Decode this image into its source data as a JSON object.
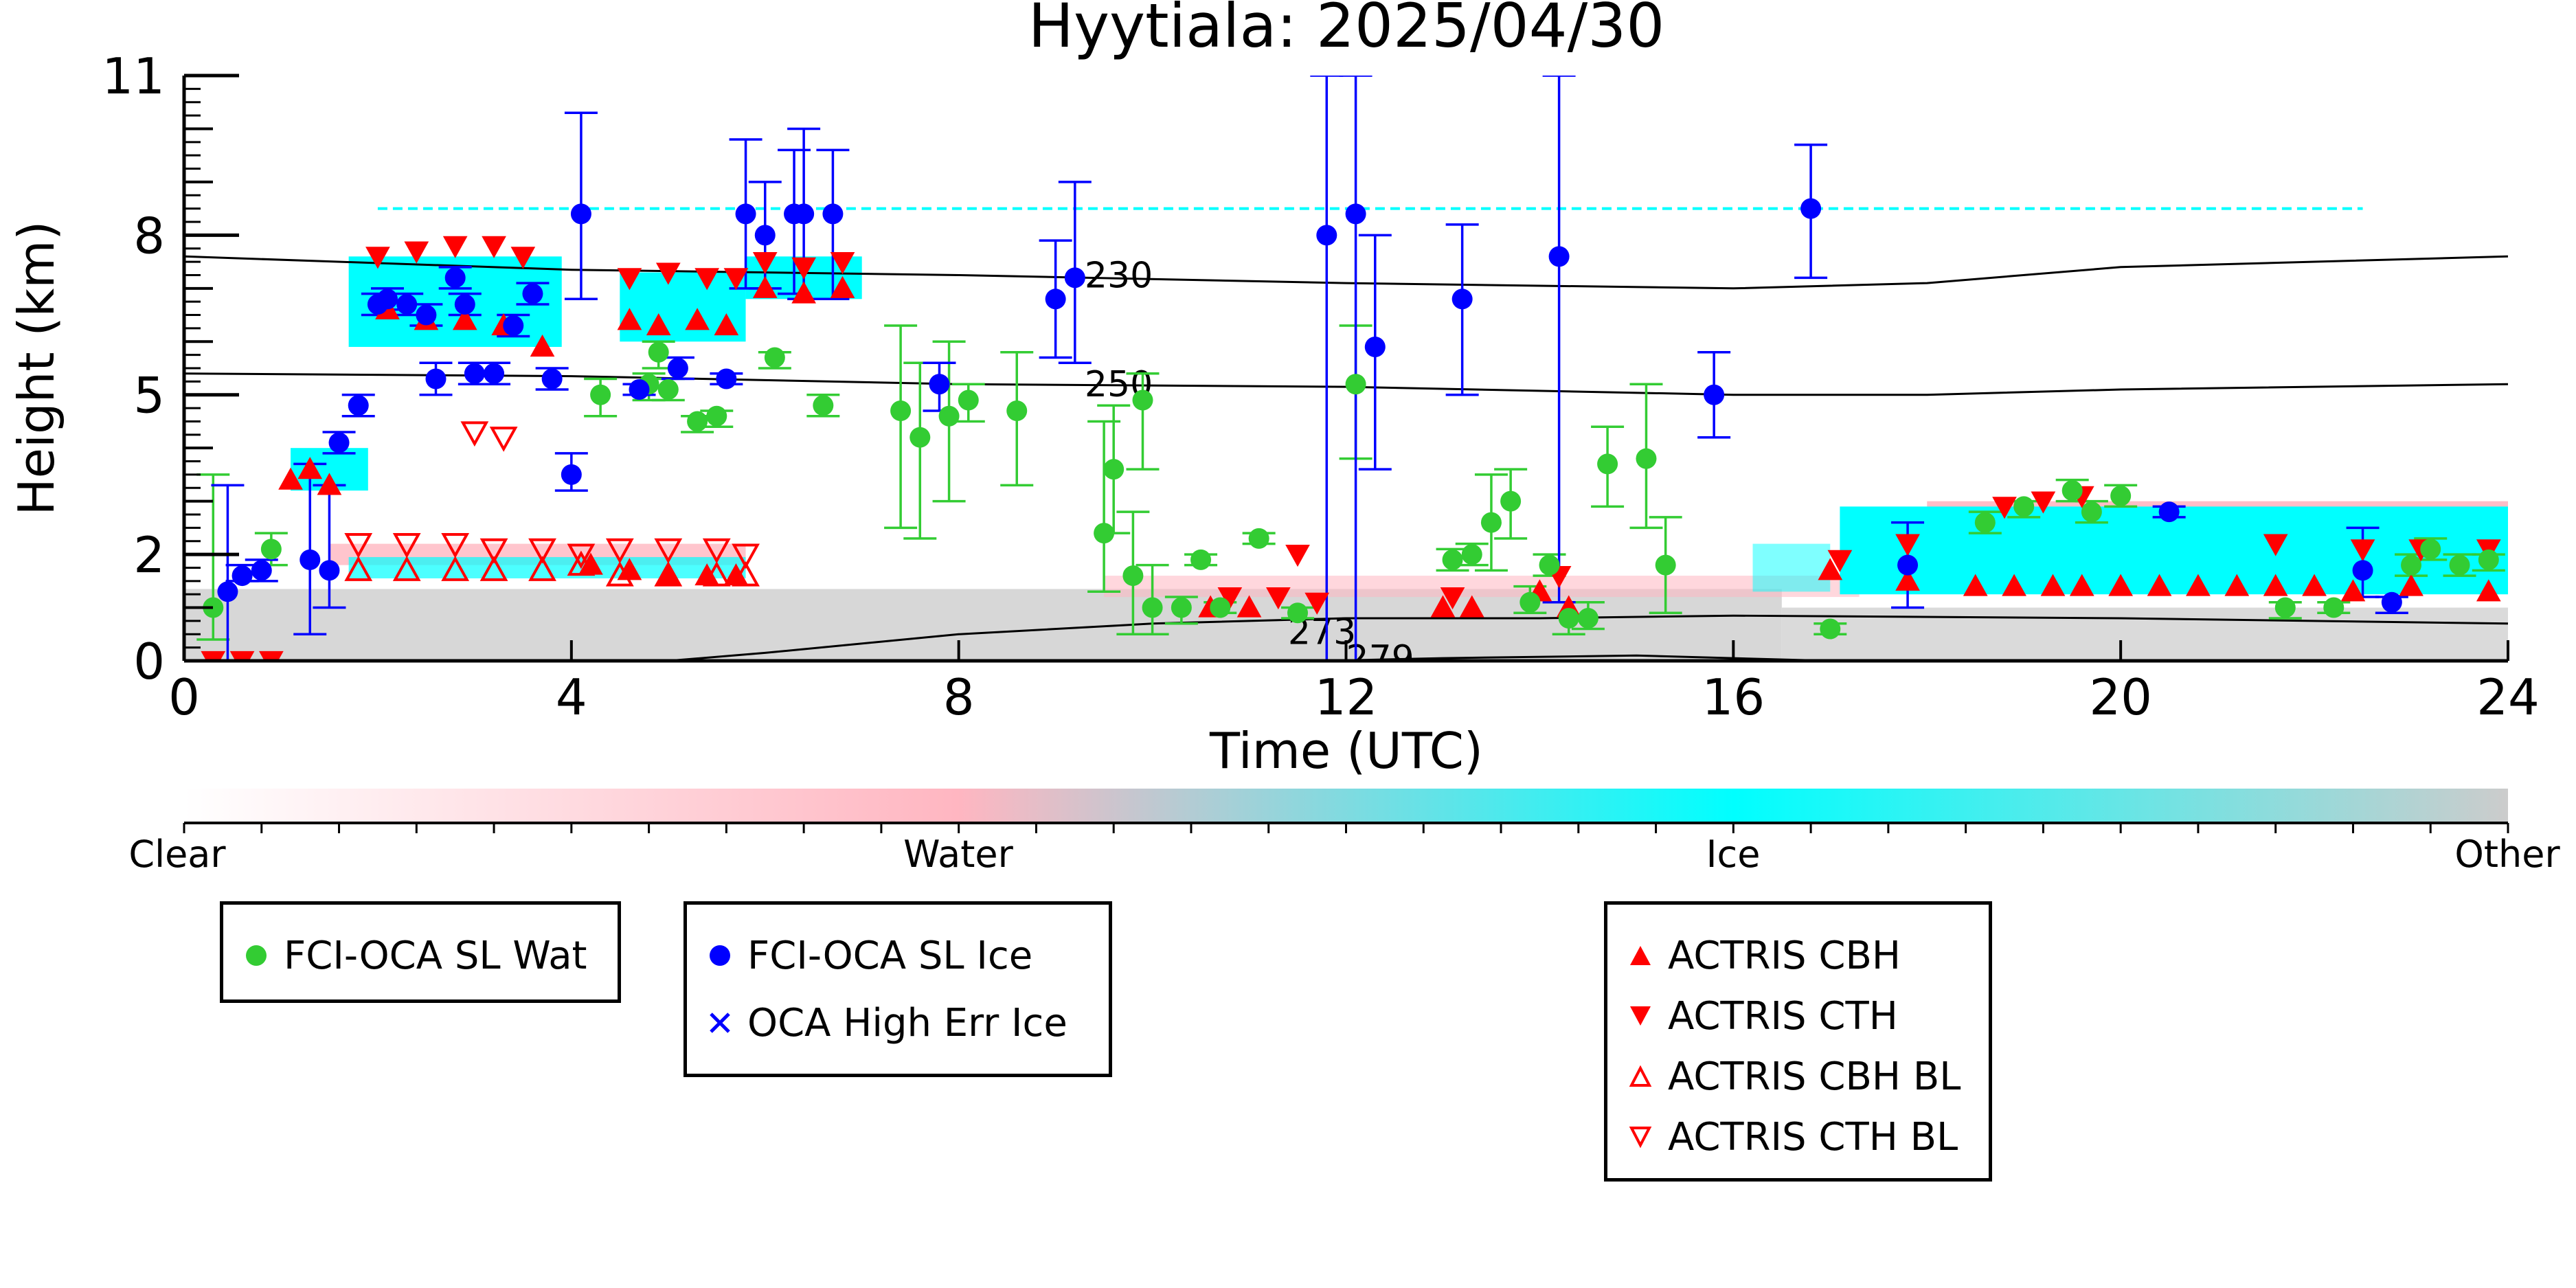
{
  "chart_data": {
    "type": "scatter",
    "title": "Hyytiala: 2025/04/30",
    "xlabel": "Time (UTC)",
    "ylabel": "Height (km)",
    "xlim": [
      0,
      24
    ],
    "ylim": [
      0,
      11
    ],
    "xticks": [
      0,
      4,
      8,
      12,
      16,
      20,
      24
    ],
    "yticks": [
      0,
      2,
      5,
      8,
      11
    ],
    "ytick_labels": [
      "0",
      "2",
      "5",
      "8",
      "11"
    ],
    "colorbar": {
      "labels": [
        "Clear",
        "Water",
        "Ice",
        "Other"
      ],
      "colors": [
        "#ffffff",
        "#ffb6c1",
        "#00ffff",
        "#cccccc"
      ]
    },
    "contours": [
      {
        "label": "230",
        "points": [
          [
            0,
            7.6
          ],
          [
            4,
            7.35
          ],
          [
            8,
            7.25
          ],
          [
            12,
            7.1
          ],
          [
            16,
            7.0
          ],
          [
            18,
            7.1
          ],
          [
            20,
            7.4
          ],
          [
            24,
            7.6
          ]
        ]
      },
      {
        "label": "250",
        "points": [
          [
            0,
            5.4
          ],
          [
            4,
            5.35
          ],
          [
            8,
            5.2
          ],
          [
            12,
            5.15
          ],
          [
            16,
            5.0
          ],
          [
            18,
            5.0
          ],
          [
            20,
            5.1
          ],
          [
            24,
            5.2
          ]
        ]
      },
      {
        "label": "273",
        "points": [
          [
            5,
            0.0
          ],
          [
            6,
            0.15
          ],
          [
            8,
            0.5
          ],
          [
            10,
            0.7
          ],
          [
            12,
            0.8
          ],
          [
            14,
            0.8
          ],
          [
            16,
            0.85
          ],
          [
            20,
            0.8
          ],
          [
            24,
            0.7
          ]
        ]
      },
      {
        "label": "279",
        "points": [
          [
            11.8,
            0.0
          ],
          [
            13,
            0.05
          ],
          [
            15,
            0.1
          ],
          [
            17,
            0.0
          ]
        ]
      }
    ],
    "series": [
      {
        "name": "FCI-OCA SL Wat",
        "color": "#33cc33",
        "marker": "circle",
        "points": [
          [
            0.3,
            1.0,
            0.4,
            3.5
          ],
          [
            0.9,
            2.1,
            1.8,
            2.4
          ],
          [
            4.3,
            5.0,
            4.6,
            5.3
          ],
          [
            4.8,
            5.2,
            4.9,
            5.4
          ],
          [
            4.9,
            5.8,
            5.5,
            6.0
          ],
          [
            5.0,
            5.1,
            4.9,
            5.3
          ],
          [
            5.3,
            4.5,
            4.3,
            4.6
          ],
          [
            5.5,
            4.6,
            4.4,
            4.7
          ],
          [
            6.1,
            5.7,
            5.5,
            5.8
          ],
          [
            6.6,
            4.8,
            4.6,
            5.0
          ],
          [
            7.4,
            4.7,
            2.5,
            6.3
          ],
          [
            7.6,
            4.2,
            2.3,
            5.6
          ],
          [
            7.9,
            4.6,
            3.0,
            6.0
          ],
          [
            8.1,
            4.9,
            4.5,
            5.2
          ],
          [
            8.6,
            4.7,
            3.3,
            5.8
          ],
          [
            9.5,
            2.4,
            1.3,
            4.5
          ],
          [
            9.6,
            3.6,
            2.4,
            4.8
          ],
          [
            9.8,
            1.6,
            0.5,
            2.8
          ],
          [
            9.9,
            4.9,
            3.6,
            5.4
          ],
          [
            10.0,
            1.0,
            0.5,
            1.8
          ],
          [
            10.3,
            1.0,
            0.7,
            1.2
          ],
          [
            10.5,
            1.9,
            1.8,
            2.0
          ],
          [
            10.7,
            1.0,
            0.9,
            1.1
          ],
          [
            11.1,
            2.3,
            2.2,
            2.4
          ],
          [
            11.5,
            0.9,
            0.8,
            1.0
          ],
          [
            12.1,
            5.2,
            3.8,
            6.3
          ],
          [
            13.1,
            1.9,
            1.7,
            2.1
          ],
          [
            13.3,
            2.0,
            1.8,
            2.2
          ],
          [
            13.5,
            2.6,
            1.7,
            3.5
          ],
          [
            13.7,
            3.0,
            2.3,
            3.6
          ],
          [
            13.9,
            1.1,
            0.9,
            1.4
          ],
          [
            14.1,
            1.8,
            1.6,
            2.0
          ],
          [
            14.3,
            0.8,
            0.5,
            1.1
          ],
          [
            14.5,
            0.8,
            0.6,
            1.1
          ],
          [
            14.7,
            3.7,
            2.9,
            4.4
          ],
          [
            15.1,
            3.8,
            2.5,
            5.2
          ],
          [
            15.3,
            1.8,
            0.9,
            2.7
          ],
          [
            17.0,
            0.6,
            0.5,
            0.7
          ],
          [
            18.6,
            2.6,
            2.4,
            2.8
          ],
          [
            19.0,
            2.9,
            2.7,
            3.0
          ],
          [
            19.5,
            3.2,
            3.0,
            3.4
          ],
          [
            19.7,
            2.8,
            2.6,
            3.0
          ],
          [
            20.0,
            3.1,
            2.9,
            3.3
          ],
          [
            21.7,
            1.0,
            0.8,
            1.1
          ],
          [
            22.2,
            1.0,
            0.9,
            1.1
          ],
          [
            23.0,
            1.8,
            1.6,
            2.0
          ],
          [
            23.2,
            2.1,
            1.9,
            2.3
          ],
          [
            23.5,
            1.8,
            1.6,
            2.0
          ],
          [
            23.8,
            1.9,
            1.7,
            2.0
          ]
        ]
      },
      {
        "name": "FCI-OCA SL Ice",
        "color": "#0000ff",
        "marker": "circle",
        "points": [
          [
            0.45,
            1.3,
            0.0,
            3.3
          ],
          [
            0.6,
            1.6,
            1.5,
            1.8
          ],
          [
            0.8,
            1.7,
            1.5,
            1.9
          ],
          [
            1.3,
            1.9,
            0.5,
            3.7
          ],
          [
            1.5,
            1.7,
            1.0,
            3.3
          ],
          [
            1.6,
            4.1,
            3.9,
            4.3
          ],
          [
            1.8,
            4.8,
            4.6,
            5.0
          ],
          [
            2.0,
            6.7,
            6.5,
            6.9
          ],
          [
            2.1,
            6.8,
            6.6,
            7.0
          ],
          [
            2.3,
            6.7,
            6.5,
            6.9
          ],
          [
            2.5,
            6.5,
            6.3,
            6.7
          ],
          [
            2.6,
            5.3,
            5.0,
            5.6
          ],
          [
            2.8,
            7.2,
            7.0,
            7.4
          ],
          [
            2.9,
            6.7,
            6.5,
            6.9
          ],
          [
            3.0,
            5.4,
            5.2,
            5.6
          ],
          [
            3.2,
            5.4,
            5.2,
            5.6
          ],
          [
            3.4,
            6.3,
            6.1,
            6.5
          ],
          [
            3.6,
            6.9,
            6.7,
            7.1
          ],
          [
            3.8,
            5.3,
            5.1,
            5.5
          ],
          [
            4.0,
            3.5,
            3.2,
            3.9
          ],
          [
            4.1,
            8.4,
            6.8,
            10.3
          ],
          [
            4.7,
            5.1,
            5.0,
            5.2
          ],
          [
            5.1,
            5.5,
            5.3,
            5.7
          ],
          [
            5.6,
            5.3,
            5.2,
            5.4
          ],
          [
            5.8,
            8.4,
            7.0,
            9.8
          ],
          [
            6.0,
            8.0,
            7.0,
            9.0
          ],
          [
            6.3,
            8.4,
            6.9,
            9.6
          ],
          [
            6.4,
            8.4,
            6.8,
            10.0
          ],
          [
            6.7,
            8.4,
            6.8,
            9.6
          ],
          [
            7.8,
            5.2,
            4.7,
            5.6
          ],
          [
            9.0,
            6.8,
            5.7,
            7.9
          ],
          [
            9.2,
            7.2,
            5.6,
            9.0
          ],
          [
            11.8,
            8.0,
            0.0,
            11.0
          ],
          [
            12.1,
            8.4,
            0.0,
            11.0
          ],
          [
            12.3,
            5.9,
            3.6,
            8.0
          ],
          [
            13.2,
            6.8,
            5.0,
            8.2
          ],
          [
            14.2,
            7.6,
            1.1,
            11.0
          ],
          [
            15.8,
            5.0,
            4.2,
            5.8
          ],
          [
            16.8,
            8.5,
            7.2,
            9.7
          ],
          [
            17.8,
            1.8,
            1.0,
            2.6
          ],
          [
            20.5,
            2.8,
            2.7,
            2.9
          ],
          [
            22.5,
            1.7,
            1.2,
            2.5
          ],
          [
            22.8,
            1.1,
            0.9,
            1.2
          ]
        ]
      }
    ],
    "overlay_labels": {
      "oca_high_err": "OCA High Err Ice",
      "cbh": "ACTRIS CBH",
      "cth": "ACTRIS CTH",
      "cbh_bl": "ACTRIS CBH BL",
      "cth_bl": "ACTRIS CTH BL"
    },
    "actris_cbh": [
      [
        1.1,
        3.4
      ],
      [
        1.3,
        3.6
      ],
      [
        1.5,
        3.3
      ],
      [
        2.1,
        6.6
      ],
      [
        2.5,
        6.4
      ],
      [
        2.9,
        6.4
      ],
      [
        3.3,
        6.3
      ],
      [
        3.7,
        5.9
      ],
      [
        4.6,
        6.4
      ],
      [
        4.9,
        6.3
      ],
      [
        5.3,
        6.4
      ],
      [
        5.6,
        6.3
      ],
      [
        4.2,
        1.8
      ],
      [
        4.6,
        1.7
      ],
      [
        5.0,
        1.6
      ],
      [
        5.4,
        1.6
      ],
      [
        5.7,
        1.6
      ],
      [
        6.0,
        7.0
      ],
      [
        6.4,
        6.9
      ],
      [
        6.8,
        7.0
      ],
      [
        10.6,
        1.0
      ],
      [
        11.0,
        1.0
      ],
      [
        13.0,
        1.0
      ],
      [
        13.3,
        1.0
      ],
      [
        14.0,
        1.3
      ],
      [
        14.3,
        1.0
      ],
      [
        17.0,
        1.7
      ],
      [
        17.8,
        1.5
      ],
      [
        18.5,
        1.4
      ],
      [
        18.9,
        1.4
      ],
      [
        19.3,
        1.4
      ],
      [
        19.6,
        1.4
      ],
      [
        20.0,
        1.4
      ],
      [
        20.4,
        1.4
      ],
      [
        20.8,
        1.4
      ],
      [
        21.2,
        1.4
      ],
      [
        21.6,
        1.4
      ],
      [
        22.0,
        1.4
      ],
      [
        22.4,
        1.3
      ],
      [
        23.0,
        1.4
      ],
      [
        23.8,
        1.3
      ]
    ],
    "actris_cth": [
      [
        0.3,
        0.0
      ],
      [
        0.6,
        0.0
      ],
      [
        0.9,
        0.0
      ],
      [
        2.0,
        7.6
      ],
      [
        2.4,
        7.7
      ],
      [
        2.8,
        7.8
      ],
      [
        3.2,
        7.8
      ],
      [
        3.5,
        7.6
      ],
      [
        4.6,
        7.2
      ],
      [
        5.0,
        7.3
      ],
      [
        5.4,
        7.2
      ],
      [
        5.7,
        7.2
      ],
      [
        6.0,
        7.5
      ],
      [
        6.4,
        7.4
      ],
      [
        6.8,
        7.5
      ],
      [
        10.8,
        1.2
      ],
      [
        11.3,
        1.2
      ],
      [
        11.7,
        1.1
      ],
      [
        11.5,
        2.0
      ],
      [
        13.1,
        1.2
      ],
      [
        14.2,
        1.6
      ],
      [
        17.1,
        1.9
      ],
      [
        17.8,
        2.2
      ],
      [
        18.8,
        2.9
      ],
      [
        19.2,
        3.0
      ],
      [
        19.6,
        3.1
      ],
      [
        21.6,
        2.2
      ],
      [
        22.5,
        2.1
      ],
      [
        23.1,
        2.1
      ],
      [
        23.8,
        2.1
      ]
    ],
    "actris_cbh_bl": [
      [
        1.8,
        1.7
      ],
      [
        2.3,
        1.7
      ],
      [
        2.8,
        1.7
      ],
      [
        3.2,
        1.7
      ],
      [
        3.7,
        1.7
      ],
      [
        4.1,
        1.8
      ],
      [
        4.5,
        1.6
      ],
      [
        5.0,
        1.6
      ],
      [
        5.5,
        1.6
      ],
      [
        5.8,
        1.6
      ]
    ],
    "actris_cth_bl": [
      [
        1.8,
        2.2
      ],
      [
        2.3,
        2.2
      ],
      [
        2.8,
        2.2
      ],
      [
        3.2,
        2.1
      ],
      [
        3.7,
        2.1
      ],
      [
        4.1,
        2.0
      ],
      [
        4.5,
        2.1
      ],
      [
        5.0,
        2.1
      ],
      [
        5.5,
        2.1
      ],
      [
        5.8,
        2.0
      ],
      [
        3.0,
        4.3
      ],
      [
        3.3,
        4.2
      ]
    ],
    "legend_placement": "below-plot"
  }
}
